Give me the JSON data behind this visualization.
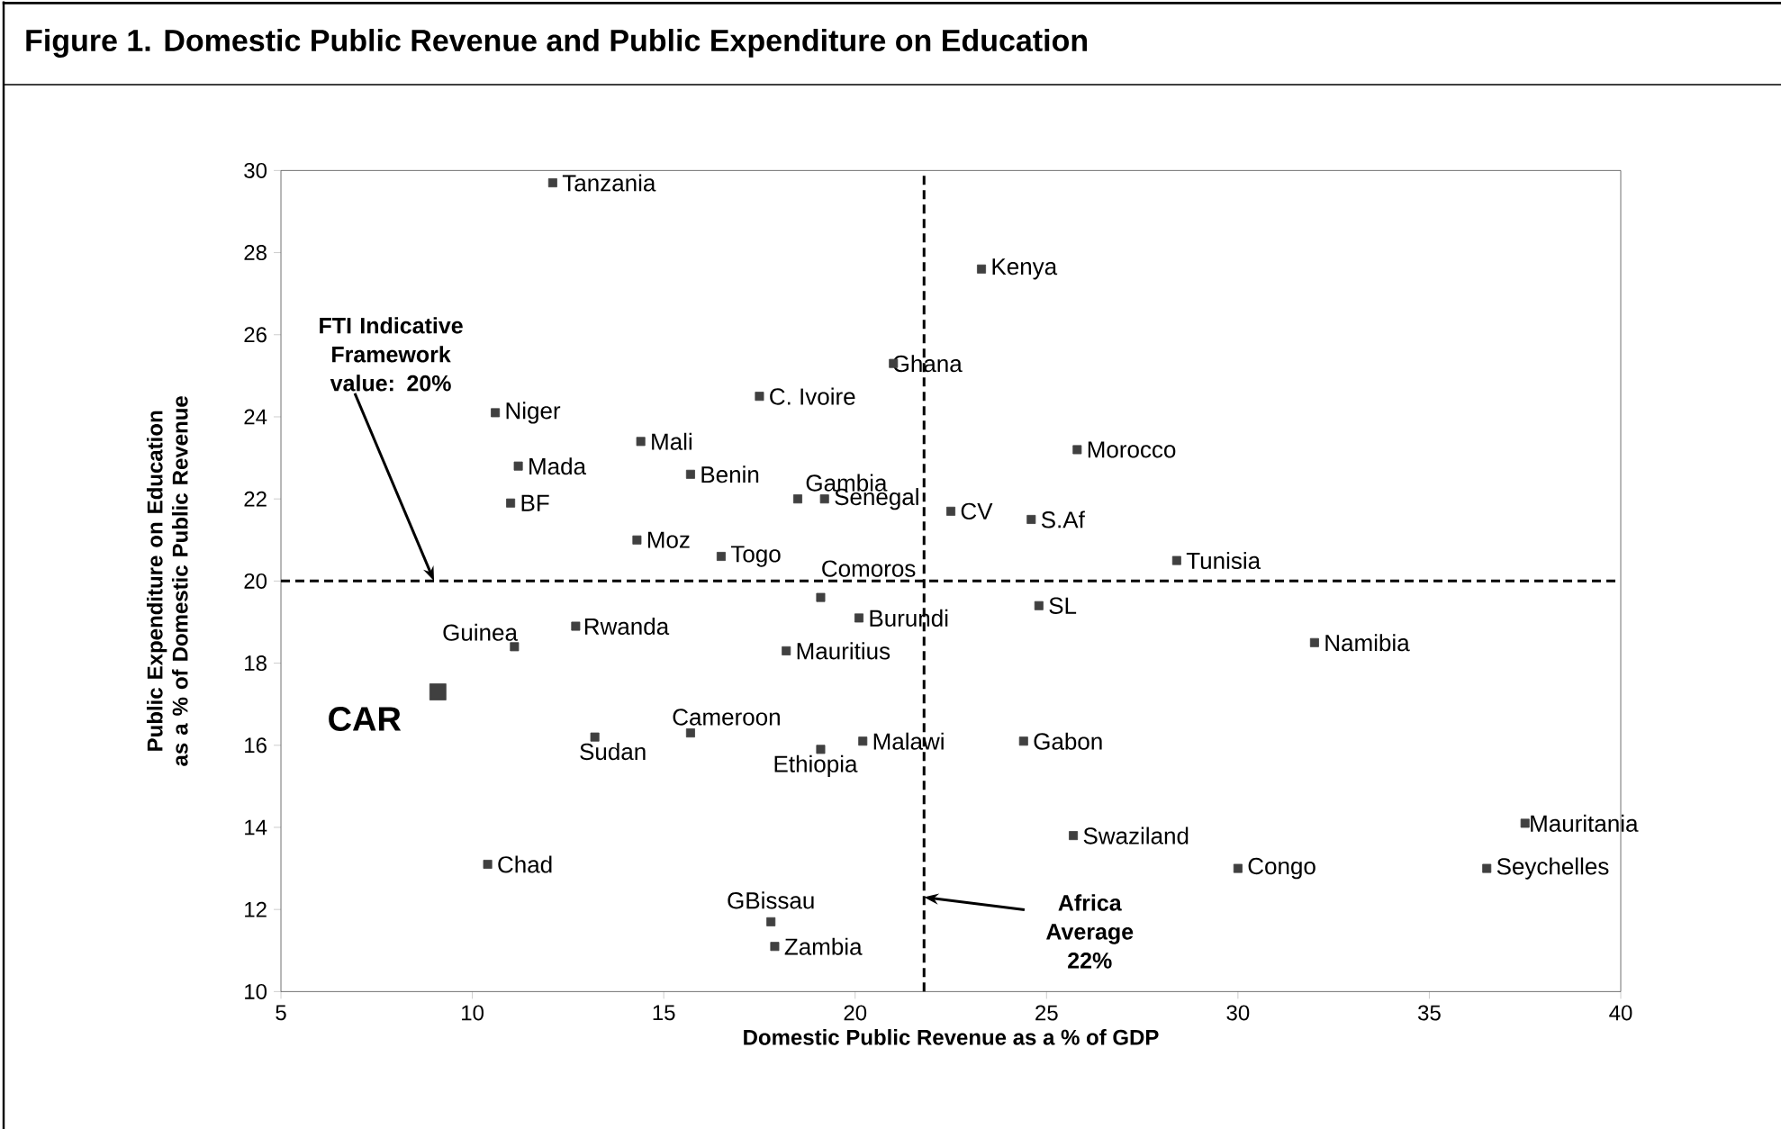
{
  "chart_data": {
    "type": "scatter",
    "title": "Figure 1.  Domestic Public Revenue and Public Expenditure on Education",
    "xlabel": "Domestic Public Revenue as a % of GDP",
    "ylabel": "Public Expenditure on Education as a % of Domestic Public Revenue",
    "xlim": [
      5,
      40
    ],
    "ylim": [
      10,
      30
    ],
    "xticks": [
      5,
      10,
      15,
      20,
      25,
      30,
      35,
      40
    ],
    "yticks": [
      10,
      12,
      14,
      16,
      18,
      20,
      22,
      24,
      26,
      28,
      30
    ],
    "marker": "square",
    "ref_lines": [
      {
        "axis": "y",
        "value": 20,
        "line_style": "dashed",
        "color": "#000000"
      },
      {
        "axis": "x",
        "value": 21.8,
        "line_style": "dashed",
        "color": "#000000"
      }
    ],
    "annotations": [
      {
        "text": "FTI Indicative Framework value: 20%",
        "x": 9,
        "y": 20
      },
      {
        "text": "Africa Average 22%",
        "x": 21.8,
        "y": 12.3
      }
    ],
    "series": [
      {
        "name": "Tanzania",
        "color": "#404040",
        "x": [
          12.1
        ],
        "values": [
          29.7
        ]
      },
      {
        "name": "Kenya",
        "color": "#404040",
        "x": [
          23.3
        ],
        "values": [
          27.6
        ]
      },
      {
        "name": "Ghana",
        "color": "#404040",
        "x": [
          21.0
        ],
        "values": [
          25.3
        ]
      },
      {
        "name": "C. Ivoire",
        "color": "#404040",
        "x": [
          17.5
        ],
        "values": [
          24.5
        ]
      },
      {
        "name": "Niger",
        "color": "#404040",
        "x": [
          10.6
        ],
        "values": [
          24.1
        ]
      },
      {
        "name": "Mali",
        "color": "#404040",
        "x": [
          14.4
        ],
        "values": [
          23.4
        ]
      },
      {
        "name": "Mada",
        "color": "#404040",
        "x": [
          11.2
        ],
        "values": [
          22.8
        ]
      },
      {
        "name": "Benin",
        "color": "#404040",
        "x": [
          15.7
        ],
        "values": [
          22.6
        ]
      },
      {
        "name": "Gambia",
        "color": "#404040",
        "x": [
          18.5
        ],
        "values": [
          22.0
        ]
      },
      {
        "name": "Senegal",
        "color": "#404040",
        "x": [
          19.2
        ],
        "values": [
          22.0
        ]
      },
      {
        "name": "BF",
        "color": "#404040",
        "x": [
          11.0
        ],
        "values": [
          21.9
        ]
      },
      {
        "name": "CV",
        "color": "#404040",
        "x": [
          22.5
        ],
        "values": [
          21.7
        ]
      },
      {
        "name": "S.Af",
        "color": "#404040",
        "x": [
          24.6
        ],
        "values": [
          21.5
        ]
      },
      {
        "name": "Morocco",
        "color": "#404040",
        "x": [
          25.8
        ],
        "values": [
          23.2
        ]
      },
      {
        "name": "Moz",
        "color": "#404040",
        "x": [
          14.3
        ],
        "values": [
          21.0
        ]
      },
      {
        "name": "Togo",
        "color": "#404040",
        "x": [
          16.5
        ],
        "values": [
          20.6
        ]
      },
      {
        "name": "Tunisia",
        "color": "#404040",
        "x": [
          28.4
        ],
        "values": [
          20.5
        ]
      },
      {
        "name": "Comoros",
        "color": "#404040",
        "x": [
          19.1
        ],
        "values": [
          19.6
        ]
      },
      {
        "name": "Burundi",
        "color": "#404040",
        "x": [
          20.1
        ],
        "values": [
          19.1
        ]
      },
      {
        "name": "SL",
        "color": "#404040",
        "x": [
          24.8
        ],
        "values": [
          19.4
        ]
      },
      {
        "name": "Guinea",
        "color": "#404040",
        "x": [
          11.1
        ],
        "values": [
          18.4
        ]
      },
      {
        "name": "Rwanda",
        "color": "#404040",
        "x": [
          12.7
        ],
        "values": [
          18.9
        ]
      },
      {
        "name": "Mauritius",
        "color": "#404040",
        "x": [
          18.2
        ],
        "values": [
          18.3
        ]
      },
      {
        "name": "Namibia",
        "color": "#404040",
        "x": [
          32.0
        ],
        "values": [
          18.5
        ]
      },
      {
        "name": "CAR",
        "color": "#404040",
        "x": [
          9.1
        ],
        "values": [
          17.3
        ]
      },
      {
        "name": "Cameroon",
        "color": "#404040",
        "x": [
          15.7
        ],
        "values": [
          16.3
        ]
      },
      {
        "name": "Sudan",
        "color": "#404040",
        "x": [
          13.2
        ],
        "values": [
          16.2
        ]
      },
      {
        "name": "Ethiopia",
        "color": "#404040",
        "x": [
          19.1
        ],
        "values": [
          15.9
        ]
      },
      {
        "name": "Malawi",
        "color": "#404040",
        "x": [
          20.2
        ],
        "values": [
          16.1
        ]
      },
      {
        "name": "Gabon",
        "color": "#404040",
        "x": [
          24.4
        ],
        "values": [
          16.1
        ]
      },
      {
        "name": "Mauritania",
        "color": "#404040",
        "x": [
          37.5
        ],
        "values": [
          14.1
        ]
      },
      {
        "name": "Swaziland",
        "color": "#404040",
        "x": [
          25.7
        ],
        "values": [
          13.8
        ]
      },
      {
        "name": "Chad",
        "color": "#404040",
        "x": [
          10.4
        ],
        "values": [
          13.1
        ]
      },
      {
        "name": "Congo",
        "color": "#404040",
        "x": [
          30.0
        ],
        "values": [
          13.0
        ]
      },
      {
        "name": "Seychelles",
        "color": "#404040",
        "x": [
          36.5
        ],
        "values": [
          13.0
        ]
      },
      {
        "name": "GBissau",
        "color": "#404040",
        "x": [
          17.8
        ],
        "values": [
          11.7
        ]
      },
      {
        "name": "Zambia",
        "color": "#404040",
        "x": [
          17.9
        ],
        "values": [
          11.1
        ]
      }
    ]
  }
}
